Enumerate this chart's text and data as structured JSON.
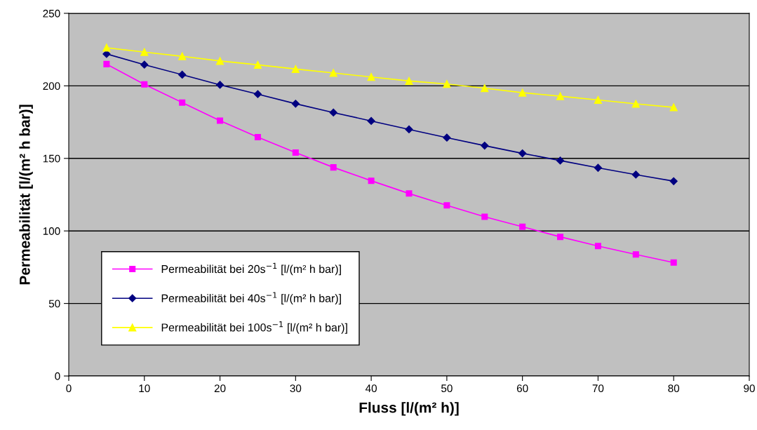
{
  "chart_data": {
    "type": "line",
    "xlabel": "Fluss [l/(m² h)]",
    "ylabel": "Permeabilität [l/(m² h bar)]",
    "x": [
      5,
      10,
      15,
      20,
      25,
      30,
      35,
      40,
      45,
      50,
      55,
      60,
      65,
      70,
      75,
      80
    ],
    "series": [
      {
        "name": "Permeabilität bei 20s$^{−1}$ [l/(m² h bar)]",
        "color": "#ff00ff",
        "marker": "square",
        "values": [
          215,
          201,
          188.5,
          176,
          164.7,
          154,
          143.8,
          134.6,
          125.8,
          117.6,
          109.8,
          102.9,
          95.9,
          89.6,
          83.8,
          78.2
        ]
      },
      {
        "name": "Permeabilität bei 40s$^{−1}$ [l/(m² h bar)]",
        "color": "#000080",
        "marker": "diamond",
        "values": [
          222,
          214.6,
          207.7,
          200.7,
          194.3,
          187.7,
          181.6,
          175.8,
          170,
          164.3,
          158.8,
          153.5,
          148.5,
          143.5,
          138.8,
          134.3
        ]
      },
      {
        "name": "Permeabilität bei 100s$^{−1}$ [l/(m² h bar)]",
        "color": "#ffff00",
        "marker": "triangle",
        "values": [
          226.3,
          223.3,
          220.4,
          217.2,
          214.5,
          211.6,
          208.9,
          206.1,
          203.4,
          201.3,
          198.4,
          195.3,
          192.9,
          190.3,
          187.6,
          185.2
        ]
      }
    ],
    "xlim": [
      0,
      90
    ],
    "xticks": [
      0,
      10,
      20,
      30,
      40,
      50,
      60,
      70,
      80,
      90
    ],
    "ylim": [
      0,
      250
    ],
    "yticks": [
      0,
      50,
      100,
      150,
      200,
      250
    ],
    "grid": "y",
    "legend": "bottom left",
    "line_style": "solid"
  }
}
